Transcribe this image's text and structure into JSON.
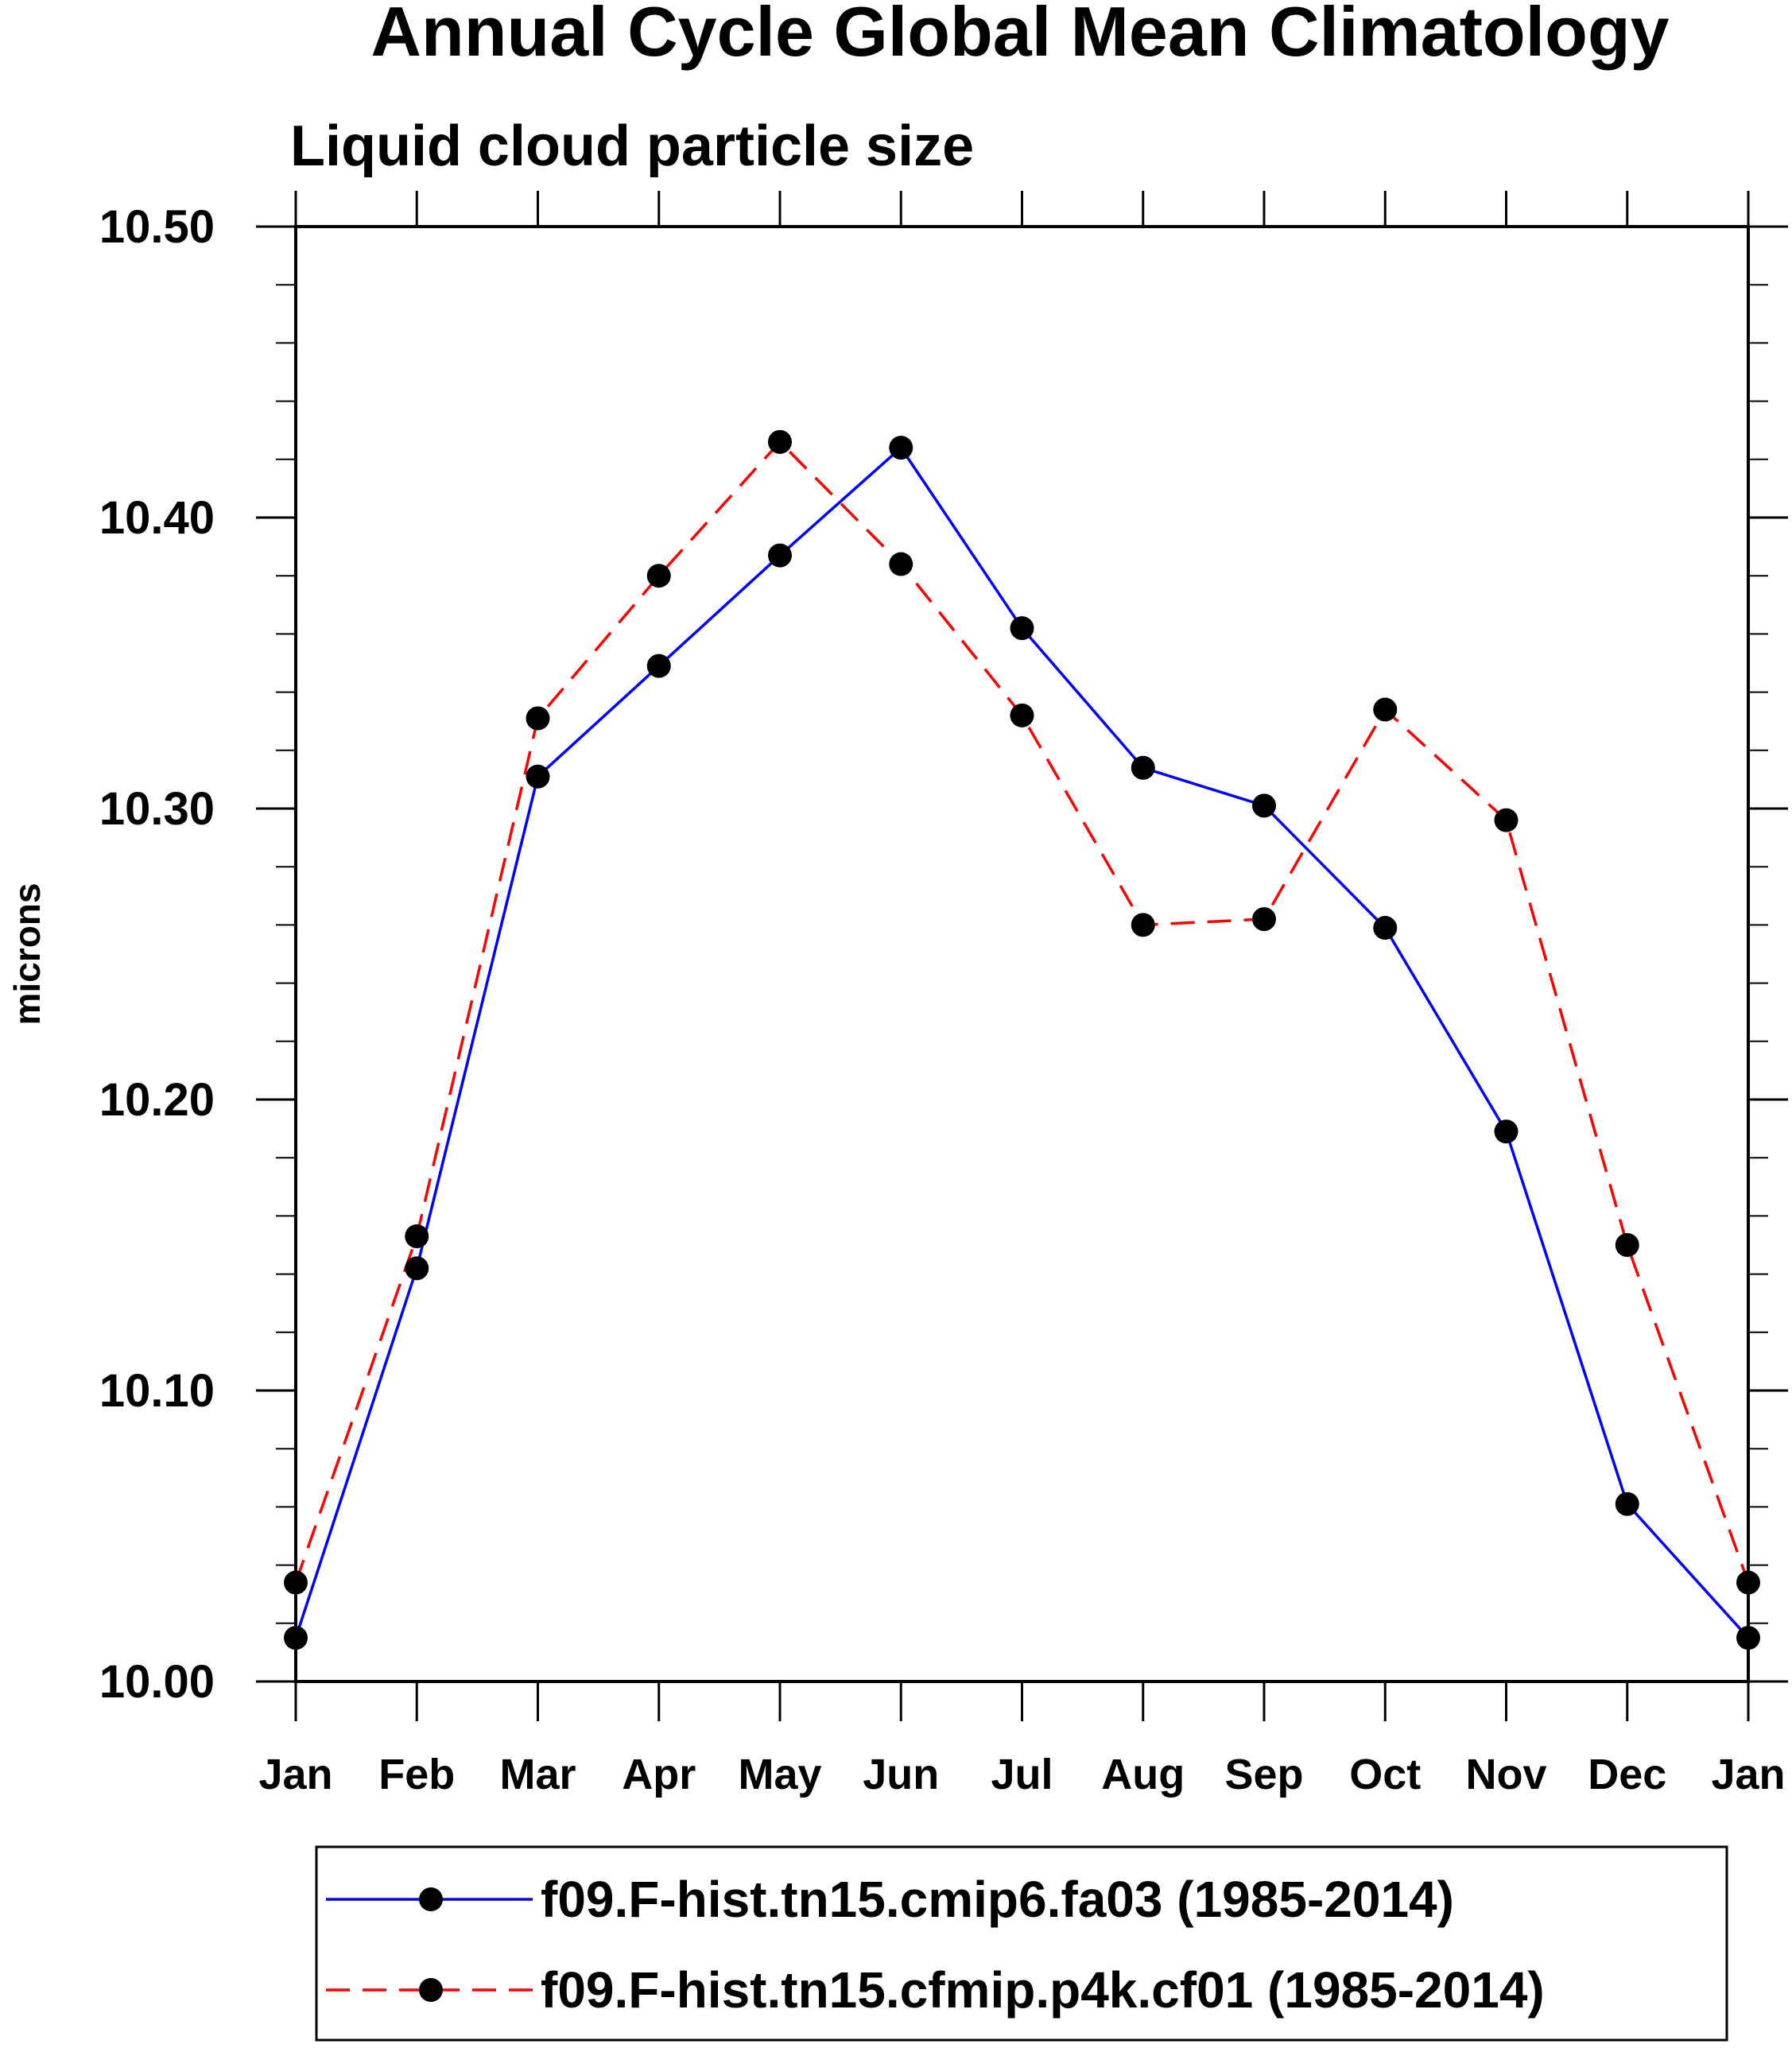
{
  "chart_data": {
    "type": "line",
    "title": "Annual Cycle Global Mean Climatology",
    "subtitle": "Liquid cloud particle size",
    "xlabel": "",
    "ylabel": "microns",
    "categories": [
      "Jan",
      "Feb",
      "Mar",
      "Apr",
      "May",
      "Jun",
      "Jul",
      "Aug",
      "Sep",
      "Oct",
      "Nov",
      "Dec",
      "Jan"
    ],
    "ylim": [
      10.0,
      10.5
    ],
    "yticks": [
      "10.00",
      "10.10",
      "10.20",
      "10.30",
      "10.40",
      "10.50"
    ],
    "legend_position": "bottom",
    "series": [
      {
        "name": "f09.F-hist.tn15.cmip6.fa03 (1985-2014)",
        "color": "#0000ff",
        "dash": "solid",
        "values": [
          10.015,
          10.142,
          10.311,
          10.349,
          10.387,
          10.424,
          10.362,
          10.314,
          10.301,
          10.259,
          10.189,
          10.061,
          10.015
        ]
      },
      {
        "name": "f09.F-hist.tn15.cfmip.p4k.cf01 (1985-2014)",
        "color": "#ff0000",
        "dash": "dashed",
        "values": [
          10.034,
          10.153,
          10.331,
          10.38,
          10.426,
          10.384,
          10.332,
          10.26,
          10.262,
          10.334,
          10.296,
          10.15,
          10.034
        ]
      }
    ]
  }
}
